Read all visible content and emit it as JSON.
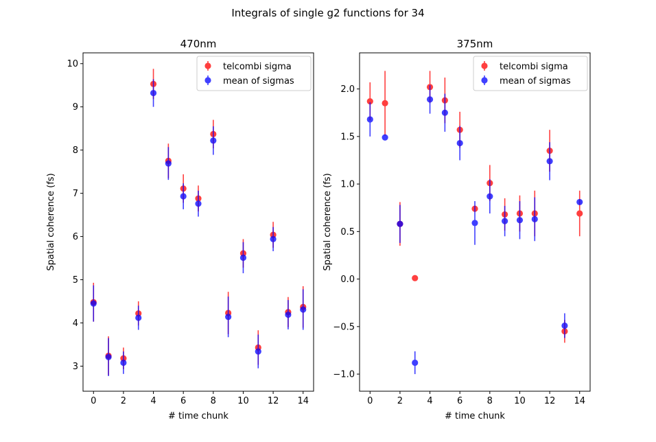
{
  "figure": {
    "suptitle": "Integrals of single g2 functions for 34"
  },
  "chart_data": [
    {
      "type": "scatter",
      "title": "470nm",
      "xlabel": "# time chunk",
      "ylabel": "Spatial coherence (fs)",
      "xlim": [
        -0.7,
        14.7
      ],
      "ylim": [
        2.42,
        10.25
      ],
      "xticks": [
        0,
        2,
        4,
        6,
        8,
        10,
        12,
        14
      ],
      "xtick_labels": [
        "0",
        "2",
        "4",
        "6",
        "8",
        "10",
        "12",
        "14"
      ],
      "yticks": [
        3,
        4,
        5,
        6,
        7,
        8,
        9,
        10
      ],
      "ytick_labels": [
        "3",
        "4",
        "5",
        "6",
        "7",
        "8",
        "9",
        "10"
      ],
      "legend": "top-right",
      "series": [
        {
          "name": "telcombi sigma",
          "color": "#ff0000",
          "x": [
            0,
            1,
            2,
            3,
            4,
            5,
            6,
            7,
            8,
            9,
            10,
            11,
            12,
            13,
            14
          ],
          "y": [
            4.48,
            3.24,
            3.18,
            4.22,
            9.53,
            7.75,
            7.11,
            6.88,
            8.37,
            4.23,
            5.61,
            3.43,
            6.04,
            4.25,
            4.37
          ],
          "err": [
            0.45,
            0.45,
            0.25,
            0.28,
            0.35,
            0.4,
            0.33,
            0.3,
            0.33,
            0.49,
            0.33,
            0.4,
            0.3,
            0.35,
            0.48
          ]
        },
        {
          "name": "mean of sigmas",
          "color": "#0000ff",
          "x": [
            0,
            1,
            2,
            3,
            4,
            5,
            6,
            7,
            8,
            9,
            10,
            11,
            12,
            13,
            14
          ],
          "y": [
            4.45,
            3.21,
            3.08,
            4.12,
            9.32,
            7.69,
            6.93,
            6.76,
            8.22,
            4.14,
            5.51,
            3.34,
            5.94,
            4.19,
            4.31
          ],
          "err": [
            0.42,
            0.44,
            0.26,
            0.28,
            0.32,
            0.38,
            0.3,
            0.3,
            0.33,
            0.47,
            0.36,
            0.39,
            0.28,
            0.34,
            0.47
          ]
        }
      ]
    },
    {
      "type": "scatter",
      "title": "375nm",
      "xlabel": "# time chunk",
      "ylabel": "Spatial coherence (fs)",
      "xlim": [
        -0.7,
        14.7
      ],
      "ylim": [
        -1.18,
        2.38
      ],
      "xticks": [
        0,
        2,
        4,
        6,
        8,
        10,
        12,
        14
      ],
      "xtick_labels": [
        "0",
        "2",
        "4",
        "6",
        "8",
        "10",
        "12",
        "14"
      ],
      "yticks": [
        -1.0,
        -0.5,
        0.0,
        0.5,
        1.0,
        1.5,
        2.0
      ],
      "ytick_labels": [
        "−1.0",
        "−0.5",
        "0.0",
        "0.5",
        "1.0",
        "1.5",
        "2.0"
      ],
      "legend": "top-right",
      "series": [
        {
          "name": "telcombi sigma",
          "color": "#ff0000",
          "x": [
            0,
            1,
            2,
            3,
            4,
            5,
            6,
            7,
            8,
            9,
            10,
            11,
            12,
            13,
            14
          ],
          "y": [
            1.87,
            1.85,
            0.58,
            0.01,
            2.02,
            1.88,
            1.57,
            0.74,
            1.01,
            0.68,
            0.69,
            0.69,
            1.35,
            -0.55,
            0.69
          ],
          "err": [
            0.2,
            0.34,
            0.23,
            0.0,
            0.17,
            0.24,
            0.19,
            0.0,
            0.19,
            0.17,
            0.19,
            0.24,
            0.22,
            0.12,
            0.24
          ]
        },
        {
          "name": "mean of sigmas",
          "color": "#0000ff",
          "x": [
            0,
            1,
            2,
            3,
            4,
            5,
            6,
            7,
            8,
            9,
            10,
            11,
            12,
            13,
            14
          ],
          "y": [
            1.68,
            1.49,
            0.58,
            -0.88,
            1.89,
            1.75,
            1.43,
            0.59,
            0.87,
            0.61,
            0.62,
            0.63,
            1.24,
            -0.49,
            0.81
          ],
          "err": [
            0.18,
            0.0,
            0.2,
            0.12,
            0.15,
            0.2,
            0.18,
            0.23,
            0.18,
            0.16,
            0.2,
            0.23,
            0.2,
            0.13,
            0.0
          ]
        }
      ]
    }
  ]
}
